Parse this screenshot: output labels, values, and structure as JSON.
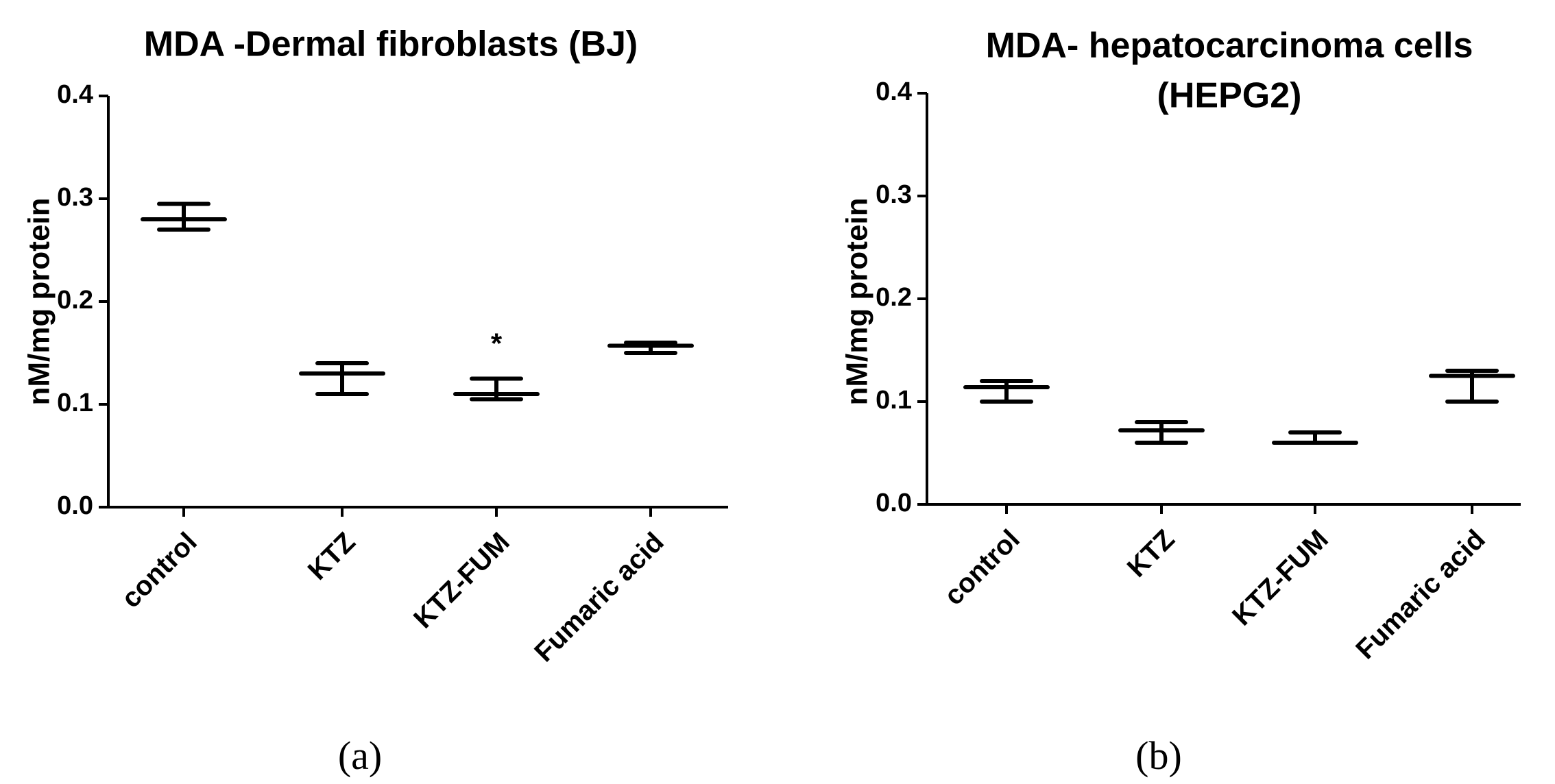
{
  "chart_data": [
    {
      "type": "box",
      "title": [
        "MDA -Dermal fibroblasts (BJ)"
      ],
      "xlabel": "",
      "ylabel": "nM/mg protein",
      "ylim": [
        0,
        0.4
      ],
      "yticks": [
        "0.0",
        "0.1",
        "0.2",
        "0.3",
        "0.4"
      ],
      "categories": [
        "control",
        "KTZ",
        "KTZ-FUM",
        "Fumaric acid"
      ],
      "series": [
        {
          "name": "control",
          "min": 0.27,
          "median": 0.28,
          "max": 0.295
        },
        {
          "name": "KTZ",
          "min": 0.11,
          "median": 0.13,
          "max": 0.14
        },
        {
          "name": "KTZ-FUM",
          "min": 0.105,
          "median": 0.11,
          "max": 0.125
        },
        {
          "name": "Fumaric acid",
          "min": 0.15,
          "median": 0.157,
          "max": 0.16
        }
      ],
      "annotations": [
        {
          "category": "KTZ-FUM",
          "text": "*"
        }
      ],
      "panel_label": "(a)"
    },
    {
      "type": "box",
      "title": [
        "MDA- hepatocarcinoma cells",
        "(HEPG2)"
      ],
      "xlabel": "",
      "ylabel": "nM/mg protein",
      "ylim": [
        0,
        0.4
      ],
      "yticks": [
        "0.0",
        "0.1",
        "0.2",
        "0.3",
        "0.4"
      ],
      "categories": [
        "control",
        "KTZ",
        "KTZ-FUM",
        "Fumaric acid"
      ],
      "series": [
        {
          "name": "control",
          "min": 0.1,
          "median": 0.114,
          "max": 0.12
        },
        {
          "name": "KTZ",
          "min": 0.06,
          "median": 0.072,
          "max": 0.08
        },
        {
          "name": "KTZ-FUM",
          "min": 0.06,
          "median": 0.06,
          "max": 0.07
        },
        {
          "name": "Fumaric acid",
          "min": 0.1,
          "median": 0.125,
          "max": 0.13
        }
      ],
      "annotations": [],
      "panel_label": "(b)"
    }
  ]
}
